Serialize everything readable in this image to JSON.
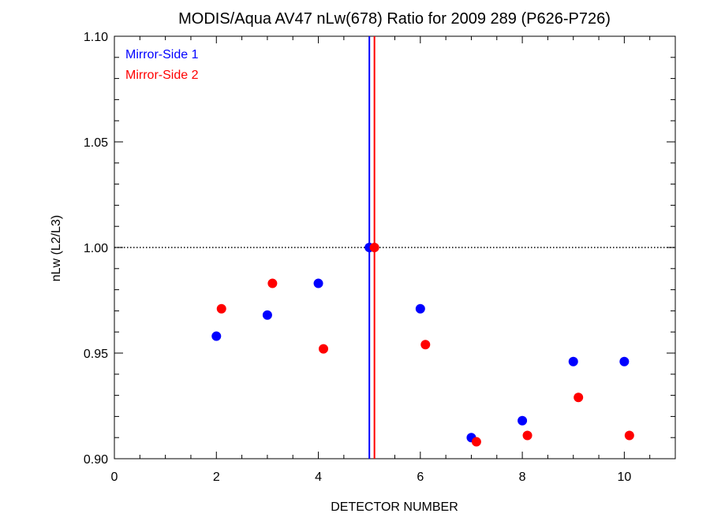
{
  "chart_data": {
    "type": "scatter",
    "title": "MODIS/Aqua AV47 nLw(678) Ratio for 2009 289 (P626-P726)",
    "xlabel": "DETECTOR NUMBER",
    "ylabel": "nLw (L2/L3)",
    "xlim": [
      0,
      11
    ],
    "ylim": [
      0.9,
      1.1
    ],
    "xticks": [
      0,
      2,
      4,
      6,
      8,
      10
    ],
    "xtick_labels": [
      "0",
      "2",
      "4",
      "6",
      "8",
      "10"
    ],
    "yticks": [
      0.9,
      0.95,
      1.0,
      1.05,
      1.1
    ],
    "ytick_labels": [
      "0.90",
      "0.95",
      "1.00",
      "1.05",
      "1.10"
    ],
    "reference_line": {
      "y": 1.0,
      "style": "dotted",
      "color": "#000000"
    },
    "vertical_lines": [
      {
        "x": 5.0,
        "color": "#0000ff"
      },
      {
        "x": 5.1,
        "color": "#ff0000"
      }
    ],
    "legend_position": "top-left",
    "series": [
      {
        "name": "Mirror-Side 1",
        "color": "#0000ff",
        "x": [
          2,
          3,
          4,
          5,
          6,
          7,
          8,
          9,
          10
        ],
        "y": [
          0.958,
          0.968,
          0.983,
          1.0,
          0.971,
          0.91,
          0.918,
          0.946,
          0.946
        ]
      },
      {
        "name": "Mirror-Side 2",
        "color": "#ff0000",
        "x": [
          2.1,
          3.1,
          4.1,
          5.1,
          6.1,
          7.1,
          8.1,
          9.1,
          10.1
        ],
        "y": [
          0.971,
          0.983,
          0.952,
          1.0,
          0.954,
          0.908,
          0.911,
          0.929,
          0.911
        ]
      }
    ]
  }
}
